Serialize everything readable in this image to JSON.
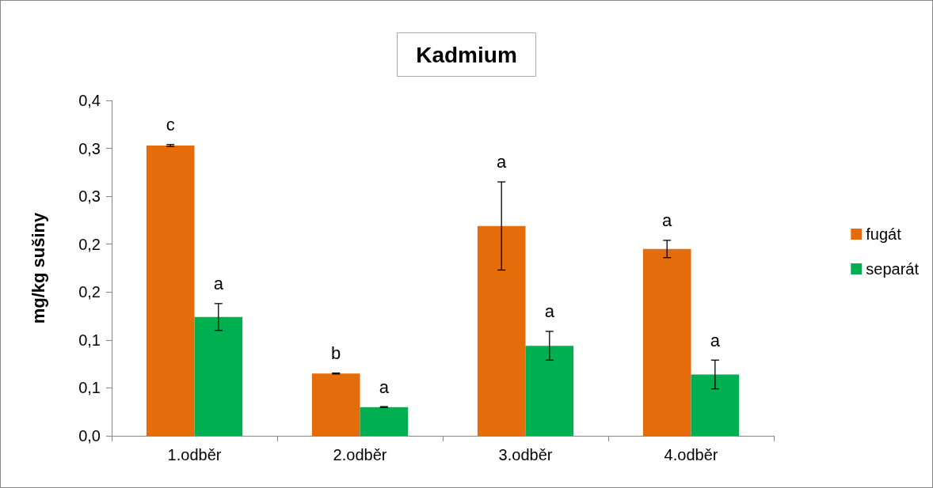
{
  "chart_data": {
    "type": "bar",
    "title": "Kadmium",
    "ylabel": "mg/kg sušiny",
    "categories": [
      "1.odběr",
      "2.odběr",
      "3.odběr",
      "4.odběr"
    ],
    "series": [
      {
        "name": "fugát",
        "color": "#e46c0a",
        "values": [
          0.303,
          0.065,
          0.219,
          0.195
        ],
        "errors": [
          0.001,
          0.0005,
          0.046,
          0.009
        ],
        "value_labels": [
          "c",
          "b",
          "a",
          "a"
        ]
      },
      {
        "name": "separát",
        "color": "#00b050",
        "values": [
          0.124,
          0.03,
          0.094,
          0.064
        ],
        "errors": [
          0.014,
          0.0005,
          0.015,
          0.015
        ],
        "value_labels": [
          "a",
          "a",
          "a",
          "a"
        ]
      }
    ],
    "ylim": [
      0,
      0.35
    ],
    "yticks": [
      {
        "value": 0,
        "label": "0,0"
      },
      {
        "value": 0.05,
        "label": "0,1"
      },
      {
        "value": 0.1,
        "label": "0,1"
      },
      {
        "value": 0.15,
        "label": "0,2"
      },
      {
        "value": 0.2,
        "label": "0,2"
      },
      {
        "value": 0.25,
        "label": "0,3"
      },
      {
        "value": 0.3,
        "label": "0,3"
      },
      {
        "value": 0.35,
        "label": "0,4"
      }
    ],
    "grid": false,
    "legend": "right"
  }
}
